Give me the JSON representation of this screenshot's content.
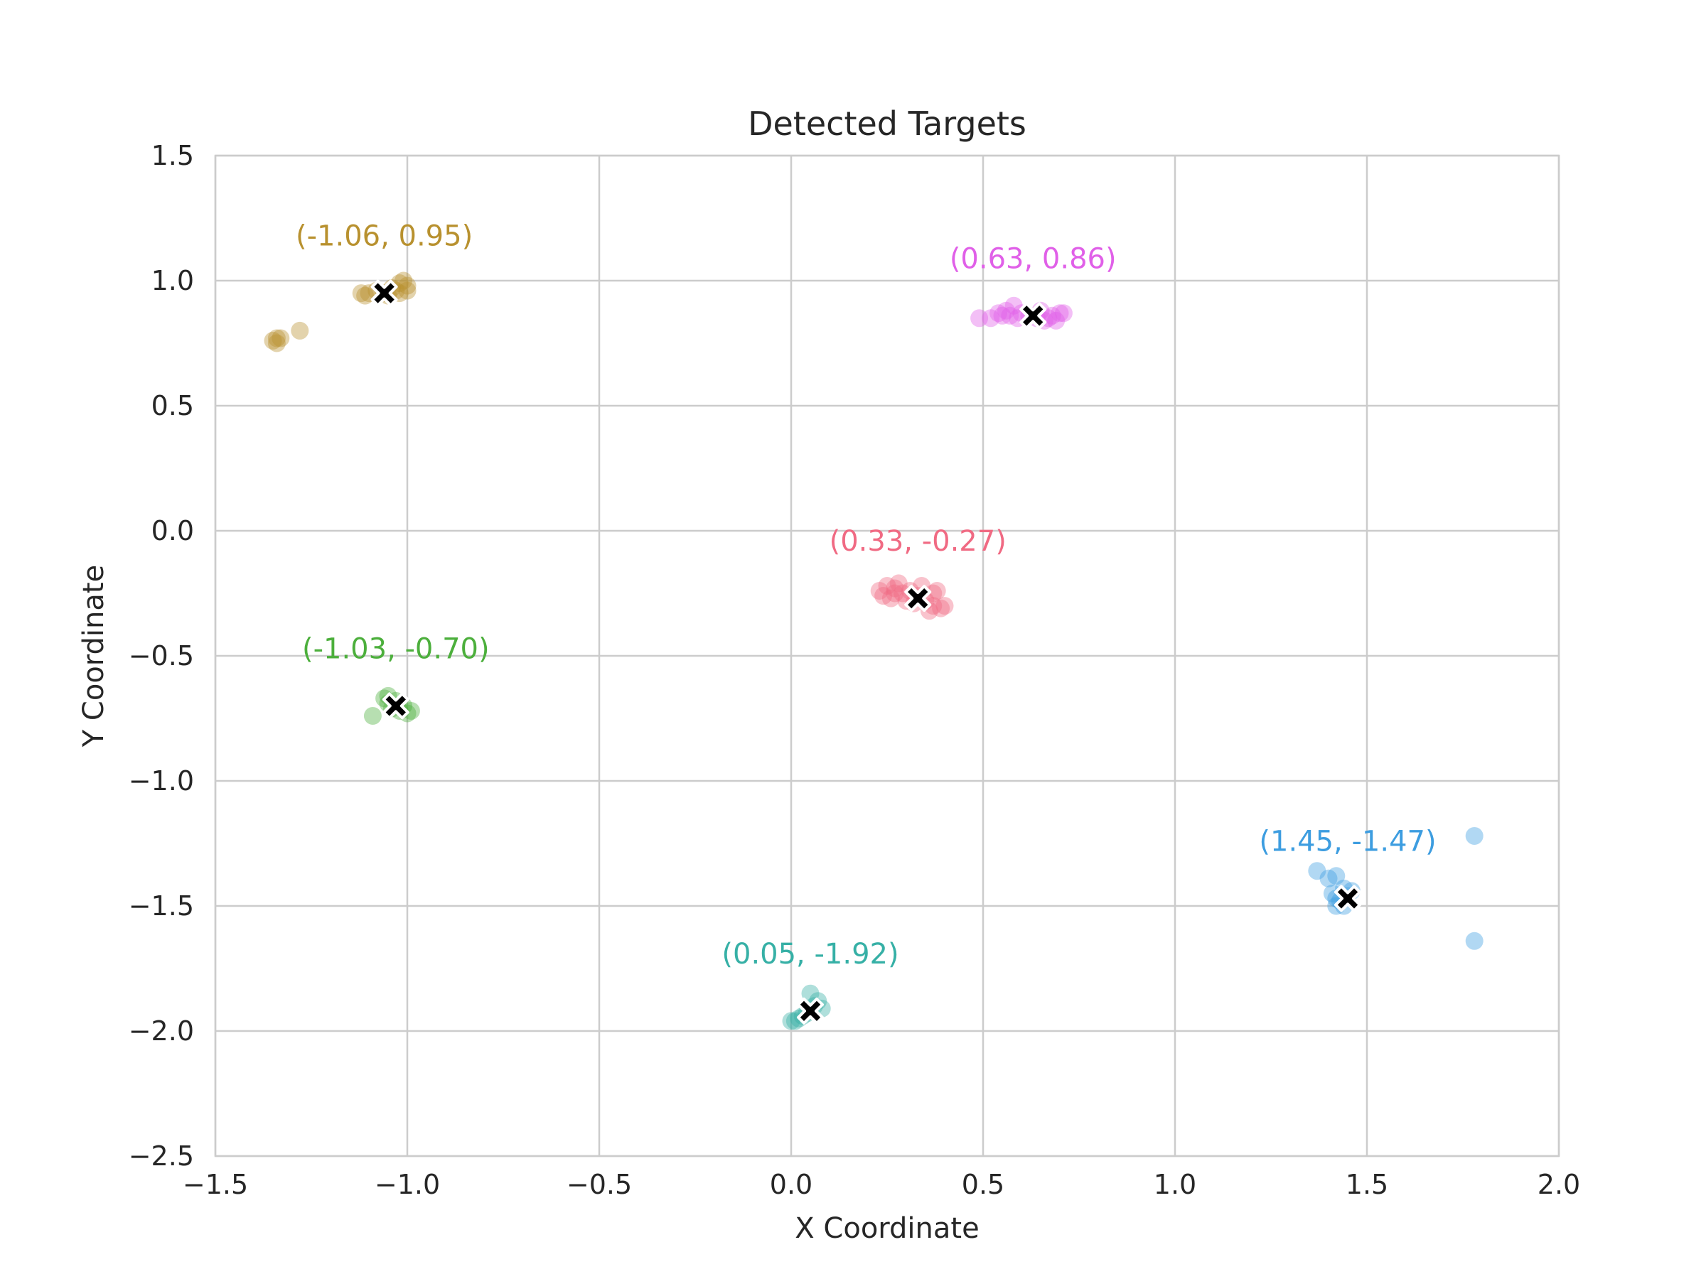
{
  "chart_data": {
    "type": "scatter",
    "title": "Detected Targets",
    "xlabel": "X Coordinate",
    "ylabel": "Y Coordinate",
    "xlim": [
      -1.5,
      2.0
    ],
    "ylim": [
      -2.5,
      1.5
    ],
    "xticks": [
      -1.5,
      -1.0,
      -0.5,
      0.0,
      0.5,
      1.0,
      1.5,
      2.0
    ],
    "yticks": [
      -2.5,
      -2.0,
      -1.5,
      -1.0,
      -0.5,
      0.0,
      0.5,
      1.0,
      1.5
    ],
    "xtick_labels": [
      "−1.5",
      "−1.0",
      "−0.5",
      "0.0",
      "0.5",
      "1.0",
      "1.5",
      "2.0"
    ],
    "ytick_labels": [
      "−2.5",
      "−2.0",
      "−1.5",
      "−1.0",
      "−0.5",
      "0.0",
      "0.5",
      "1.0",
      "1.5"
    ],
    "grid": true,
    "clusters": [
      {
        "color": "#b8912f",
        "centroid": [
          -1.06,
          0.95
        ],
        "label": "(-1.06, 0.95)",
        "points": [
          [
            -1.12,
            0.95
          ],
          [
            -1.1,
            0.95
          ],
          [
            -1.08,
            0.96
          ],
          [
            -1.06,
            0.95
          ],
          [
            -1.04,
            0.97
          ],
          [
            -1.02,
            0.99
          ],
          [
            -1.01,
            1.0
          ],
          [
            -1.0,
            0.98
          ],
          [
            -1.0,
            0.96
          ],
          [
            -1.02,
            0.95
          ],
          [
            -1.05,
            0.94
          ],
          [
            -1.03,
            0.96
          ],
          [
            -1.34,
            0.77
          ],
          [
            -1.35,
            0.76
          ],
          [
            -1.34,
            0.75
          ],
          [
            -1.33,
            0.77
          ],
          [
            -1.28,
            0.8
          ],
          [
            -1.11,
            0.94
          ]
        ]
      },
      {
        "color": "#e060e8",
        "centroid": [
          0.63,
          0.86
        ],
        "label": "(0.63, 0.86)",
        "points": [
          [
            0.49,
            0.85
          ],
          [
            0.52,
            0.85
          ],
          [
            0.54,
            0.87
          ],
          [
            0.56,
            0.88
          ],
          [
            0.58,
            0.9
          ],
          [
            0.6,
            0.87
          ],
          [
            0.62,
            0.86
          ],
          [
            0.64,
            0.85
          ],
          [
            0.66,
            0.84
          ],
          [
            0.68,
            0.86
          ],
          [
            0.7,
            0.87
          ],
          [
            0.71,
            0.87
          ],
          [
            0.55,
            0.86
          ],
          [
            0.59,
            0.85
          ],
          [
            0.65,
            0.88
          ],
          [
            0.69,
            0.84
          ],
          [
            0.57,
            0.86
          ],
          [
            0.67,
            0.85
          ]
        ]
      },
      {
        "color": "#f06a83",
        "centroid": [
          0.33,
          -0.27
        ],
        "label": "(0.33, -0.27)",
        "points": [
          [
            0.23,
            -0.24
          ],
          [
            0.25,
            -0.22
          ],
          [
            0.27,
            -0.23
          ],
          [
            0.29,
            -0.25
          ],
          [
            0.31,
            -0.24
          ],
          [
            0.33,
            -0.26
          ],
          [
            0.35,
            -0.28
          ],
          [
            0.37,
            -0.3
          ],
          [
            0.39,
            -0.31
          ],
          [
            0.36,
            -0.32
          ],
          [
            0.38,
            -0.24
          ],
          [
            0.26,
            -0.27
          ],
          [
            0.28,
            -0.21
          ],
          [
            0.3,
            -0.28
          ],
          [
            0.34,
            -0.22
          ],
          [
            0.4,
            -0.3
          ],
          [
            0.24,
            -0.26
          ],
          [
            0.32,
            -0.29
          ],
          [
            0.37,
            -0.25
          ],
          [
            0.27,
            -0.25
          ]
        ]
      },
      {
        "color": "#4caf3c",
        "centroid": [
          -1.03,
          -0.7
        ],
        "label": "(-1.03, -0.70)",
        "points": [
          [
            -1.06,
            -0.67
          ],
          [
            -1.05,
            -0.69
          ],
          [
            -1.04,
            -0.71
          ],
          [
            -1.02,
            -0.72
          ],
          [
            -1.0,
            -0.73
          ],
          [
            -0.99,
            -0.72
          ],
          [
            -1.03,
            -0.68
          ],
          [
            -1.01,
            -0.7
          ],
          [
            -1.09,
            -0.74
          ],
          [
            -1.05,
            -0.66
          ]
        ]
      },
      {
        "color": "#36b0a6",
        "centroid": [
          0.05,
          -1.92
        ],
        "label": "(0.05, -1.92)",
        "points": [
          [
            0.0,
            -1.96
          ],
          [
            0.02,
            -1.95
          ],
          [
            0.04,
            -1.93
          ],
          [
            0.06,
            -1.9
          ],
          [
            0.07,
            -1.88
          ],
          [
            0.08,
            -1.91
          ],
          [
            0.05,
            -1.85
          ],
          [
            0.01,
            -1.96
          ],
          [
            0.03,
            -1.94
          ]
        ]
      },
      {
        "color": "#3d9de0",
        "centroid": [
          1.45,
          -1.47
        ],
        "label": "(1.45, -1.47)",
        "points": [
          [
            1.41,
            -1.45
          ],
          [
            1.42,
            -1.47
          ],
          [
            1.43,
            -1.48
          ],
          [
            1.44,
            -1.5
          ],
          [
            1.45,
            -1.46
          ],
          [
            1.46,
            -1.44
          ],
          [
            1.42,
            -1.5
          ],
          [
            1.44,
            -1.43
          ],
          [
            1.4,
            -1.39
          ],
          [
            1.42,
            -1.38
          ],
          [
            1.37,
            -1.36
          ],
          [
            1.78,
            -1.22
          ],
          [
            1.78,
            -1.64
          ]
        ]
      }
    ]
  }
}
